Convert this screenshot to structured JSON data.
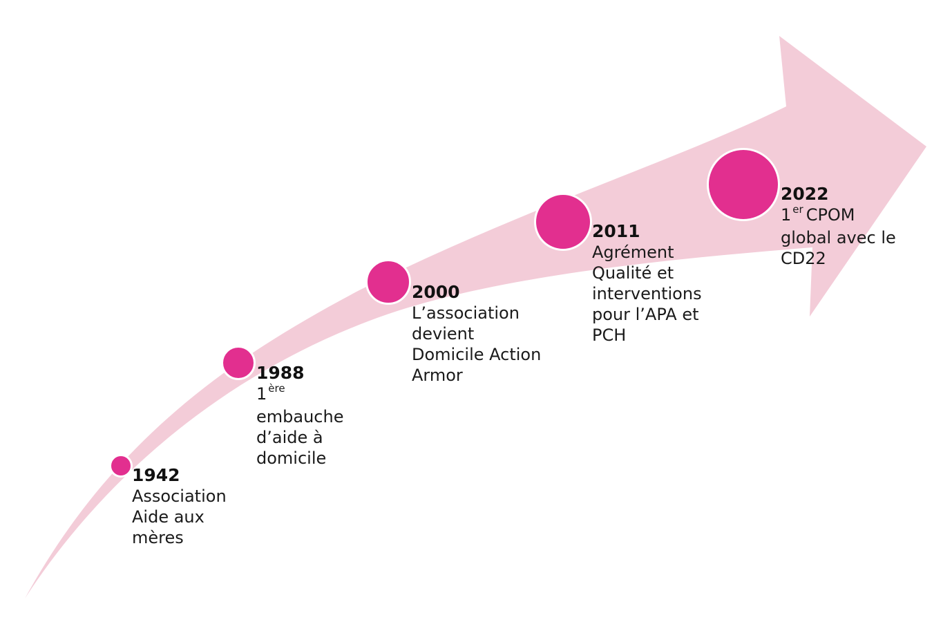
{
  "colors": {
    "arrow": "#f3ccd8",
    "dot": "#e22f8f",
    "dot_border": "#ffffff"
  },
  "milestones": [
    {
      "year": "1942",
      "lines": [
        "Association",
        "Aide aux",
        "mères"
      ]
    },
    {
      "year": "1988",
      "ordinal": "1",
      "ordinal_sup": "ère",
      "lines": [
        "embauche",
        "d’aide à",
        "domicile"
      ]
    },
    {
      "year": "2000",
      "lines": [
        "L’association",
        "devient",
        "Domicile Action",
        "Armor"
      ]
    },
    {
      "year": "2011",
      "lines": [
        "Agrément",
        "Qualité et",
        "interventions",
        "pour l’APA et",
        "PCH"
      ]
    },
    {
      "year": "2022",
      "ordinal": "1",
      "ordinal_sup": "er",
      "ordinal_rest": "CPOM",
      "lines": [
        "global avec le",
        "CD22"
      ]
    }
  ]
}
